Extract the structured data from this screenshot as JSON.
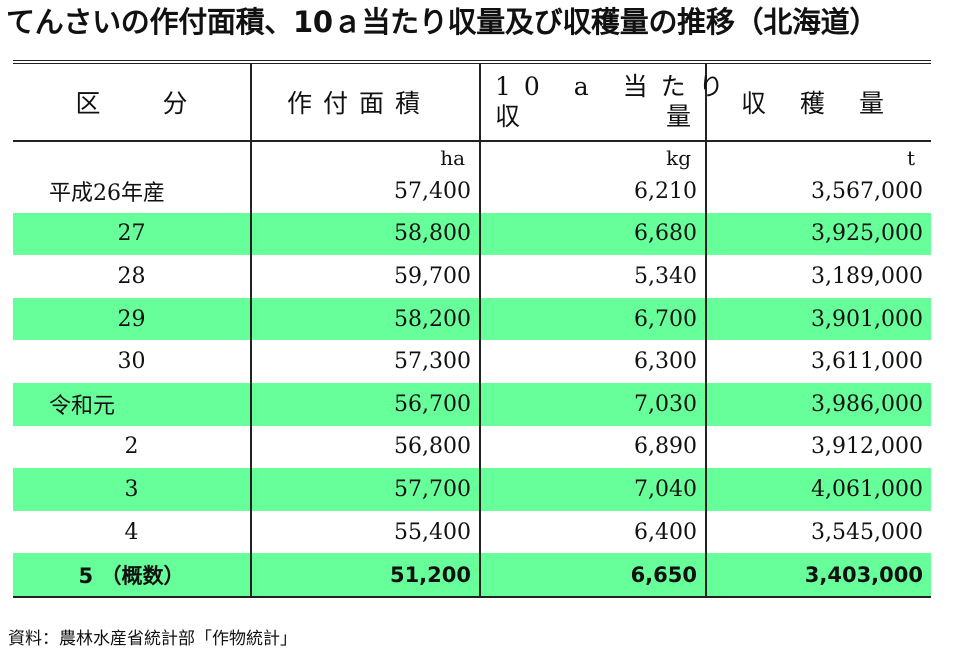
{
  "title": "てんさいの作付面積、10ａ当たり収量及び収穫量の推移（北海道）",
  "headers": {
    "category": "区分",
    "area": "作付面積",
    "yield_line1": "10 a 当たり",
    "yield_line2_a": "収",
    "yield_line2_b": "量",
    "harvest": "収穫量"
  },
  "units": {
    "area": "ha",
    "yield": "kg",
    "harvest": "t"
  },
  "rows": [
    {
      "category": "平成26年産",
      "area": "57,400",
      "yield": "6,210",
      "harvest": "3,567,000"
    },
    {
      "category": "27",
      "area": "58,800",
      "yield": "6,680",
      "harvest": "3,925,000"
    },
    {
      "category": "28",
      "area": "59,700",
      "yield": "5,340",
      "harvest": "3,189,000"
    },
    {
      "category": "29",
      "area": "58,200",
      "yield": "6,700",
      "harvest": "3,901,000"
    },
    {
      "category": "30",
      "area": "57,300",
      "yield": "6,300",
      "harvest": "3,611,000"
    },
    {
      "category": "令和元",
      "area": "56,700",
      "yield": "7,030",
      "harvest": "3,986,000"
    },
    {
      "category": "2",
      "area": "56,800",
      "yield": "6,890",
      "harvest": "3,912,000"
    },
    {
      "category": "3",
      "area": "57,700",
      "yield": "7,040",
      "harvest": "4,061,000"
    },
    {
      "category": "4",
      "area": "55,400",
      "yield": "6,400",
      "harvest": "3,545,000"
    },
    {
      "category": "5 （概数）",
      "area": "51,200",
      "yield": "6,650",
      "harvest": "3,403,000"
    }
  ],
  "highlight_color": "#66ff99",
  "source": "資料：農林水産省統計部「作物統計」"
}
